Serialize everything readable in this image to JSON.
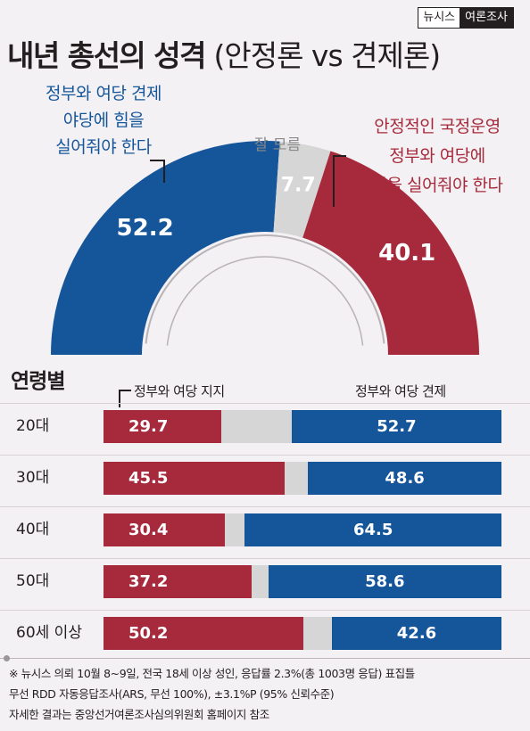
{
  "badge": {
    "brand": "뉴시스",
    "partner": "여론조사"
  },
  "title": {
    "main": "내년 총선의 성격",
    "sub": " (안정론 vs 견제론)"
  },
  "colors": {
    "red": "#a62a3c",
    "blue": "#15569a",
    "gray": "#d6d6d6"
  },
  "chart_data": [
    {
      "type": "pie",
      "shape": "half-donut",
      "slices": [
        {
          "label_lines": [
            "정부와 여당 견제",
            "야당에 힘을",
            "실어줘야 한다"
          ],
          "value": 52.2,
          "display": "52.2",
          "color": "#15569a"
        },
        {
          "label_lines": [
            "잘 모름"
          ],
          "value": 7.7,
          "display": "7.7",
          "color": "#d6d6d6"
        },
        {
          "label_lines": [
            "안정적인 국정운영",
            "정부와 여당에",
            "힘을 실어줘야 한다"
          ],
          "value": 40.1,
          "display": "40.1",
          "color": "#a62a3c"
        }
      ]
    },
    {
      "type": "bar",
      "stacked": true,
      "orientation": "horizontal",
      "title": "연령별",
      "categories": [
        "20대",
        "30대",
        "40대",
        "50대",
        "60세 이상"
      ],
      "series": [
        {
          "name": "정부와 여당 지지",
          "values": [
            29.7,
            45.5,
            30.4,
            37.2,
            50.2
          ],
          "display": [
            "29.7",
            "45.5",
            "30.4",
            "37.2",
            "50.2"
          ],
          "color": "#a62a3c"
        },
        {
          "name": "정부와 여당 견제",
          "values": [
            52.7,
            48.6,
            64.5,
            58.6,
            42.6
          ],
          "display": [
            "52.7",
            "48.6",
            "64.5",
            "58.6",
            "42.6"
          ],
          "color": "#15569a"
        }
      ]
    }
  ],
  "footnote": [
    "※ 뉴시스 의뢰 10월 8~9일, 전국 18세 이상 성인, 응답률 2.3%(총 1003명 응답) 표집틀",
    "무선 RDD 자동응답조사(ARS, 무선 100%), ±3.1%P (95% 신뢰수준)",
    "자세한 결과는 중앙선거여론조사심의위원회 홈페이지 참조"
  ]
}
